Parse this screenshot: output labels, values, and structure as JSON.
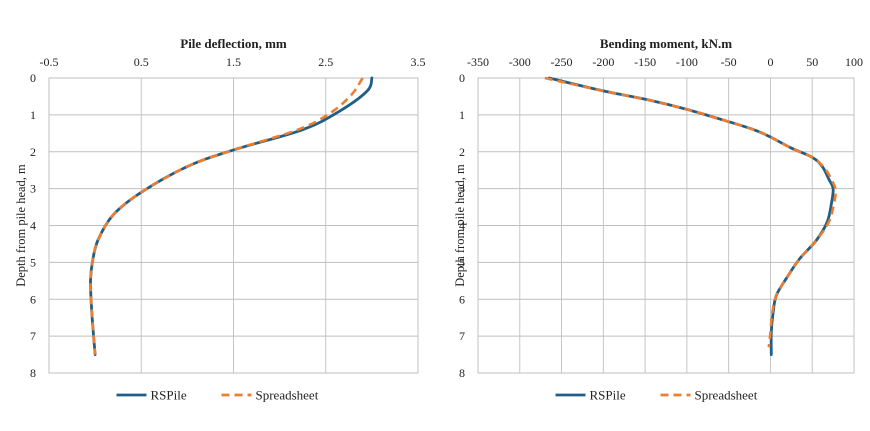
{
  "chart_data": [
    {
      "type": "line",
      "title": "Pile deflection, mm",
      "xlabel": "Pile deflection, mm",
      "ylabel": "Depth from pile head, m",
      "xlim": [
        -0.5,
        3.5
      ],
      "ylim": [
        0,
        8
      ],
      "y_inverted": true,
      "x_axis_position": "top",
      "grid": true,
      "x_ticks": [
        "-0.5",
        "0.5",
        "1.5",
        "2.5",
        "3.5"
      ],
      "x_tick_values": [
        -0.5,
        0.5,
        1.5,
        2.5,
        3.5
      ],
      "y_ticks": [
        "0",
        "1",
        "2",
        "3",
        "4",
        "5",
        "6",
        "7",
        "8"
      ],
      "y_tick_values": [
        0,
        1,
        2,
        3,
        4,
        5,
        6,
        7,
        8
      ],
      "legend_position": "bottom",
      "series": [
        {
          "name": "RSPile",
          "color": "#1f5f86",
          "style": "solid",
          "points": [
            {
              "x": 3.0,
              "y": 0.0
            },
            {
              "x": 2.95,
              "y": 0.35
            },
            {
              "x": 2.65,
              "y": 0.9
            },
            {
              "x": 2.25,
              "y": 1.4
            },
            {
              "x": 1.5,
              "y": 1.95
            },
            {
              "x": 1.0,
              "y": 2.4
            },
            {
              "x": 0.5,
              "y": 3.1
            },
            {
              "x": 0.2,
              "y": 3.7
            },
            {
              "x": 0.03,
              "y": 4.4
            },
            {
              "x": -0.03,
              "y": 5.0
            },
            {
              "x": -0.05,
              "y": 5.5
            },
            {
              "x": -0.04,
              "y": 6.2
            },
            {
              "x": -0.02,
              "y": 6.9
            },
            {
              "x": 0.0,
              "y": 7.5
            }
          ]
        },
        {
          "name": "Spreadsheet",
          "color": "#ed7d31",
          "style": "dashed",
          "points": [
            {
              "x": 2.9,
              "y": 0.0
            },
            {
              "x": 2.78,
              "y": 0.45
            },
            {
              "x": 2.55,
              "y": 0.95
            },
            {
              "x": 2.2,
              "y": 1.4
            },
            {
              "x": 1.5,
              "y": 1.95
            },
            {
              "x": 1.0,
              "y": 2.4
            },
            {
              "x": 0.5,
              "y": 3.1
            },
            {
              "x": 0.2,
              "y": 3.7
            },
            {
              "x": 0.03,
              "y": 4.4
            },
            {
              "x": -0.03,
              "y": 5.0
            },
            {
              "x": -0.05,
              "y": 5.5
            },
            {
              "x": -0.04,
              "y": 6.2
            },
            {
              "x": -0.02,
              "y": 6.9
            },
            {
              "x": 0.0,
              "y": 7.5
            }
          ]
        }
      ]
    },
    {
      "type": "line",
      "title": "Bending moment, kN.m",
      "xlabel": "Bending moment, kN.m",
      "ylabel": "Depth from pile head, m",
      "xlim": [
        -350,
        100
      ],
      "ylim": [
        0,
        8
      ],
      "y_inverted": true,
      "x_axis_position": "top",
      "grid": true,
      "x_ticks": [
        "-350",
        "-300",
        "-250",
        "-200",
        "-150",
        "-100",
        "-50",
        "0",
        "50",
        "100"
      ],
      "x_tick_values": [
        -350,
        -300,
        -250,
        -200,
        -150,
        -100,
        -50,
        0,
        50,
        100
      ],
      "y_ticks": [
        "0",
        "1",
        "2",
        "3",
        "4",
        "5",
        "6",
        "7",
        "8"
      ],
      "y_tick_values": [
        0,
        1,
        2,
        3,
        4,
        5,
        6,
        7,
        8
      ],
      "legend_position": "bottom",
      "series": [
        {
          "name": "RSPile",
          "color": "#1f5f86",
          "style": "solid",
          "points": [
            {
              "x": -265,
              "y": 0.0
            },
            {
              "x": -200,
              "y": 0.35
            },
            {
              "x": -145,
              "y": 0.6
            },
            {
              "x": -100,
              "y": 0.85
            },
            {
              "x": -55,
              "y": 1.15
            },
            {
              "x": -20,
              "y": 1.4
            },
            {
              "x": 0,
              "y": 1.6
            },
            {
              "x": 25,
              "y": 1.9
            },
            {
              "x": 50,
              "y": 2.15
            },
            {
              "x": 62,
              "y": 2.4
            },
            {
              "x": 70,
              "y": 2.75
            },
            {
              "x": 75,
              "y": 3.0
            },
            {
              "x": 73,
              "y": 3.4
            },
            {
              "x": 68,
              "y": 3.9
            },
            {
              "x": 55,
              "y": 4.4
            },
            {
              "x": 35,
              "y": 4.9
            },
            {
              "x": 20,
              "y": 5.4
            },
            {
              "x": 7,
              "y": 5.9
            },
            {
              "x": 3,
              "y": 6.4
            },
            {
              "x": 1,
              "y": 6.9
            },
            {
              "x": 1,
              "y": 7.5
            }
          ]
        },
        {
          "name": "Spreadsheet",
          "color": "#ed7d31",
          "style": "dashed",
          "points": [
            {
              "x": -270,
              "y": 0.0
            },
            {
              "x": -200,
              "y": 0.35
            },
            {
              "x": -145,
              "y": 0.6
            },
            {
              "x": -100,
              "y": 0.85
            },
            {
              "x": -55,
              "y": 1.15
            },
            {
              "x": -20,
              "y": 1.4
            },
            {
              "x": 0,
              "y": 1.6
            },
            {
              "x": 25,
              "y": 1.9
            },
            {
              "x": 50,
              "y": 2.15
            },
            {
              "x": 65,
              "y": 2.45
            },
            {
              "x": 74,
              "y": 2.8
            },
            {
              "x": 78,
              "y": 3.05
            },
            {
              "x": 76,
              "y": 3.4
            },
            {
              "x": 70,
              "y": 3.9
            },
            {
              "x": 55,
              "y": 4.4
            },
            {
              "x": 35,
              "y": 4.9
            },
            {
              "x": 20,
              "y": 5.4
            },
            {
              "x": 7,
              "y": 5.9
            },
            {
              "x": 2,
              "y": 6.4
            },
            {
              "x": 0,
              "y": 6.9
            },
            {
              "x": -2,
              "y": 7.3
            }
          ]
        }
      ]
    }
  ]
}
